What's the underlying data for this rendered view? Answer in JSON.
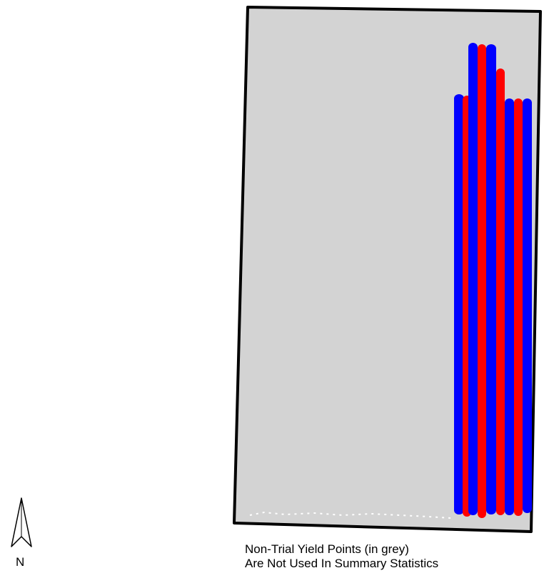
{
  "map": {
    "colors": {
      "field_fill": "#d3d3d3",
      "field_border": "#000000",
      "trial_strip_a": "#0000ff",
      "trial_strip_b": "#ff0000",
      "background": "#ffffff"
    },
    "north_arrow": {
      "label": "N",
      "icon": "north-arrow-icon"
    },
    "legend_note": {
      "line1": "Non-Trial Yield Points (in grey)",
      "line2": "Are Not Used In Summary Statistics"
    },
    "strips": [
      {
        "color": "blue"
      },
      {
        "color": "red"
      },
      {
        "color": "blue"
      },
      {
        "color": "red"
      },
      {
        "color": "blue"
      },
      {
        "color": "red"
      },
      {
        "color": "blue"
      },
      {
        "color": "red"
      },
      {
        "color": "blue"
      }
    ]
  }
}
